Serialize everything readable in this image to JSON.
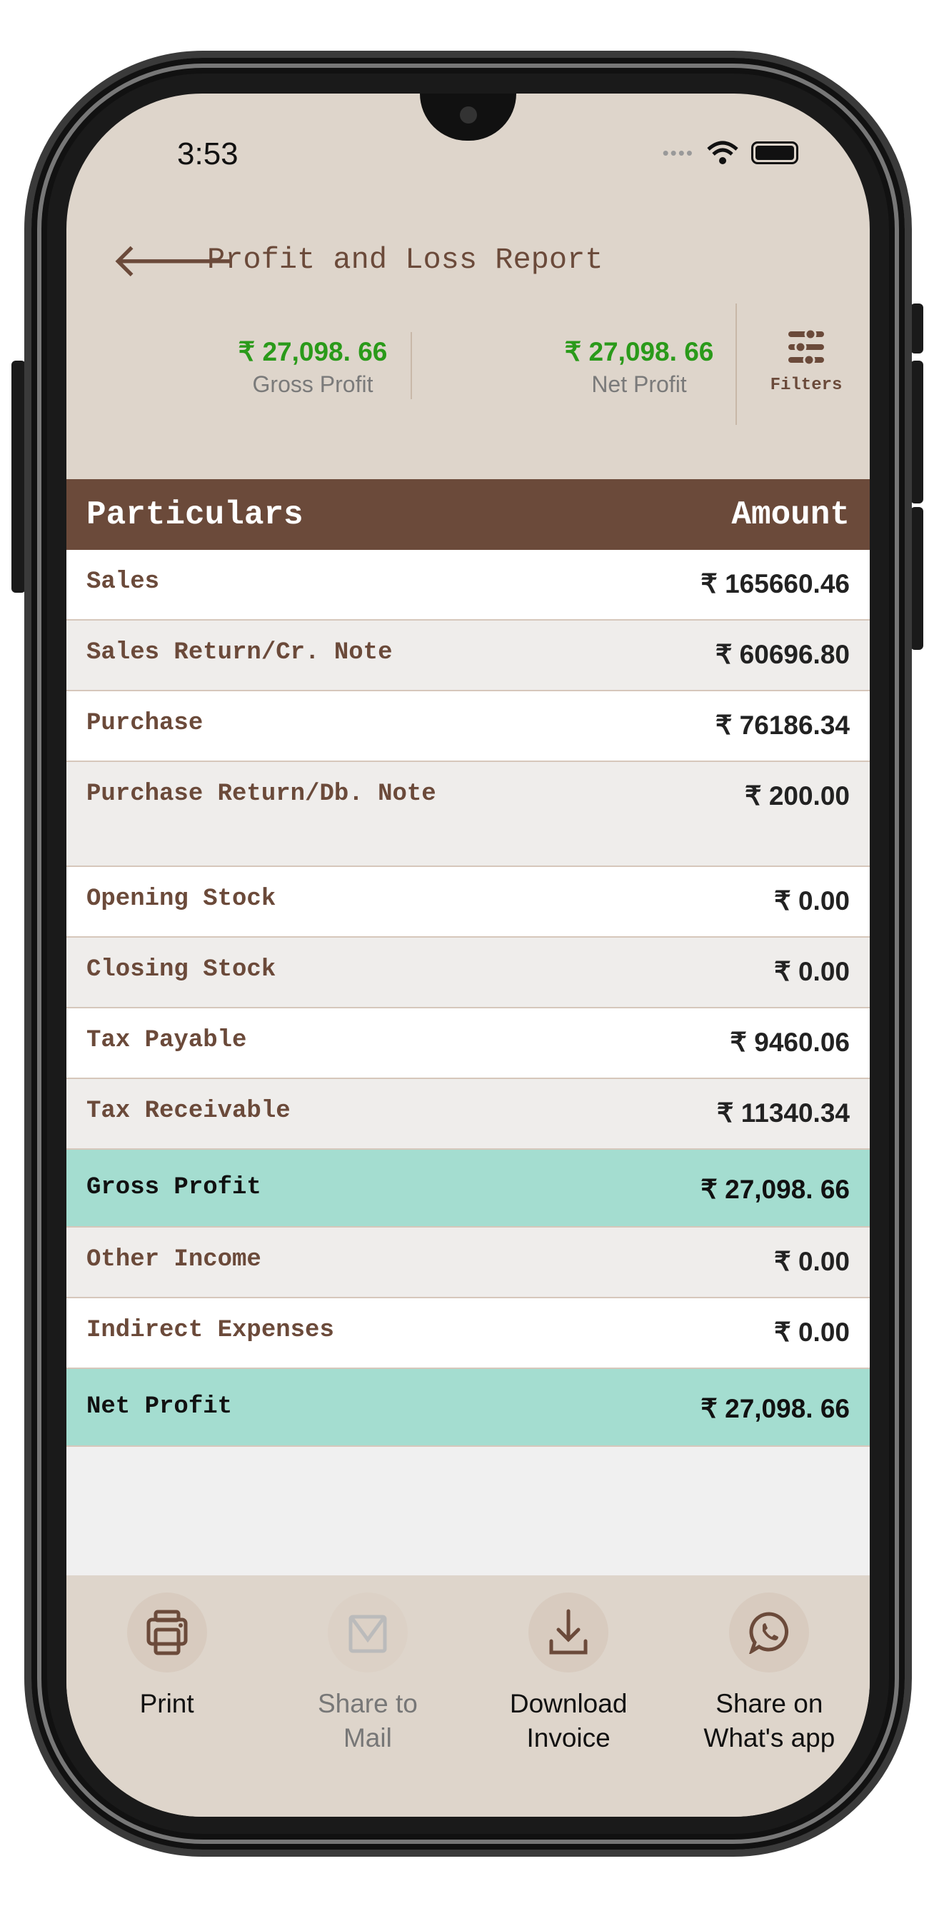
{
  "status": {
    "time": "3:53"
  },
  "header": {
    "title": "Profit and Loss Report"
  },
  "summary": {
    "gross_value": "₹ 27,098. 66",
    "gross_label": "Gross Profit",
    "net_value": "₹ 27,098. 66",
    "net_label": "Net Profit",
    "filters_label": "Filters"
  },
  "table": {
    "col_particulars": "Particulars",
    "col_amount": "Amount",
    "rows": [
      {
        "label": "Sales",
        "amount": "₹ 165660.46"
      },
      {
        "label": "Sales Return/Cr. Note",
        "amount": "₹ 60696.80"
      },
      {
        "label": "Purchase",
        "amount": "₹ 76186.34"
      },
      {
        "label": "Purchase Return/Db. Note",
        "amount": "₹ 200.00"
      },
      {
        "label": "Opening Stock",
        "amount": "₹ 0.00"
      },
      {
        "label": "Closing Stock",
        "amount": "₹ 0.00"
      },
      {
        "label": "Tax Payable",
        "amount": "₹ 9460.06"
      },
      {
        "label": "Tax Receivable",
        "amount": "₹ 11340.34"
      },
      {
        "label": "Gross Profit",
        "amount": "₹ 27,098. 66"
      },
      {
        "label": "Other Income",
        "amount": "₹ 0.00"
      },
      {
        "label": "Indirect Expenses",
        "amount": "₹ 0.00"
      },
      {
        "label": "Net Profit",
        "amount": "₹ 27,098. 66"
      }
    ]
  },
  "actions": [
    {
      "label": "Print",
      "icon": "printer-icon"
    },
    {
      "label": "Share to Mail",
      "icon": "mail-icon",
      "disabled": true
    },
    {
      "label": "Download Invoice",
      "icon": "download-icon"
    },
    {
      "label": "Share on What's app",
      "icon": "whatsapp-icon"
    }
  ],
  "colors": {
    "brand": "#6b4a3a",
    "background": "#ded5cb",
    "positive": "#2a9a1a",
    "highlight": "#a4ddd0"
  }
}
